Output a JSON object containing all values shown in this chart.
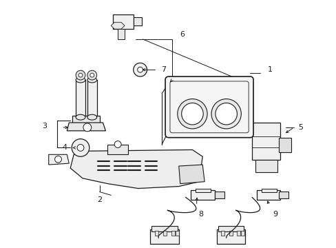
{
  "background_color": "#ffffff",
  "line_color": "#1a1a1a",
  "line_width": 0.9,
  "label_fontsize": 8,
  "figure_width": 4.89,
  "figure_height": 3.6,
  "dpi": 100
}
